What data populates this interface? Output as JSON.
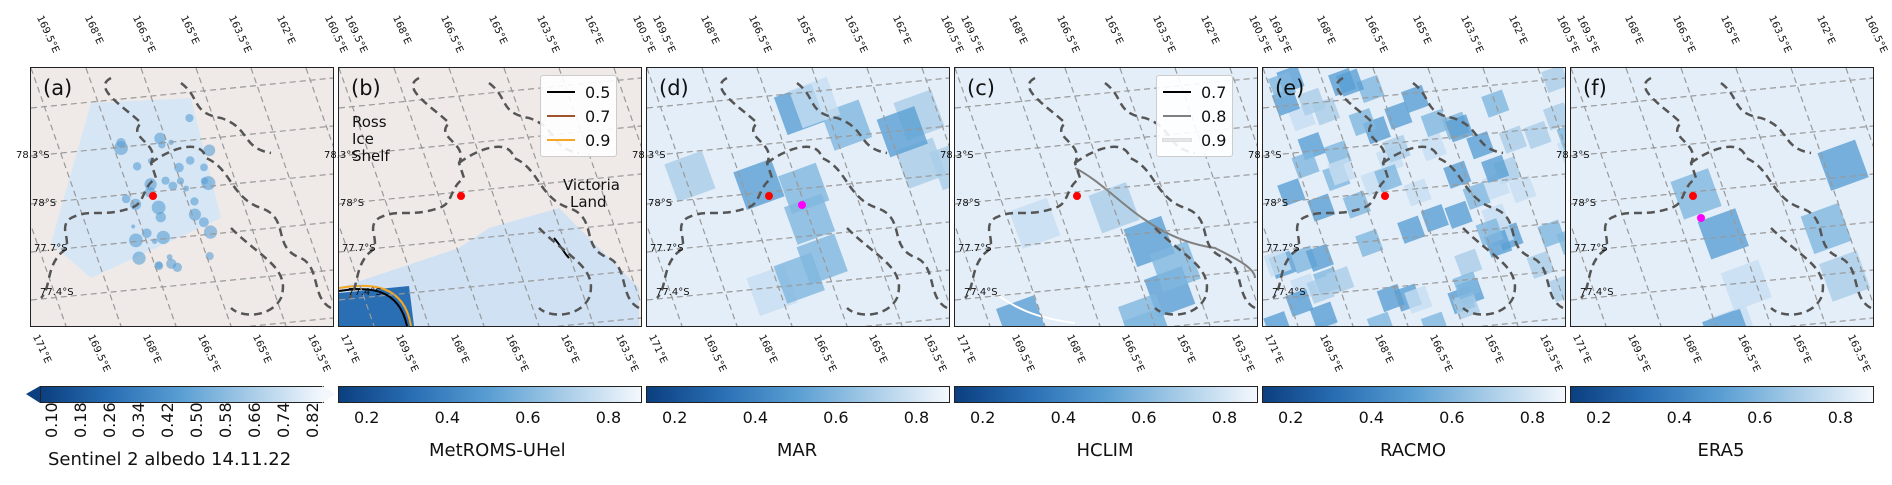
{
  "panels": [
    {
      "id": "a",
      "label": "(a)",
      "cbar_title": "Sentinel 2 albedo 14.11.22",
      "cbar_ticks": [
        "0.10",
        "0.18",
        "0.26",
        "0.34",
        "0.42",
        "0.50",
        "0.58",
        "0.66",
        "0.74",
        "0.82"
      ]
    },
    {
      "id": "b",
      "label": "(b)",
      "cbar_title": "MetROMS-UHel",
      "cbar_ticks": [
        "0.2",
        "0.4",
        "0.6",
        "0.8"
      ],
      "legend": [
        {
          "label": "0.5",
          "color": "#000000"
        },
        {
          "label": "0.7",
          "color": "#a0522d"
        },
        {
          "label": "0.9",
          "color": "#f5a623"
        }
      ],
      "annotations": [
        "Ross",
        "Ice Shelf",
        "Victoria",
        "Land"
      ]
    },
    {
      "id": "d",
      "label": "(d)",
      "cbar_title": "MAR",
      "cbar_ticks": [
        "0.2",
        "0.4",
        "0.6",
        "0.8"
      ]
    },
    {
      "id": "c",
      "label": "(c)",
      "cbar_title": "HCLIM",
      "cbar_ticks": [
        "0.2",
        "0.4",
        "0.6",
        "0.8"
      ],
      "legend": [
        {
          "label": "0.7",
          "color": "#000000"
        },
        {
          "label": "0.8",
          "color": "#808080"
        },
        {
          "label": "0.9",
          "color": "#e6e6e6"
        }
      ]
    },
    {
      "id": "e",
      "label": "(e)",
      "cbar_title": "RACMO",
      "cbar_ticks": [
        "0.2",
        "0.4",
        "0.6",
        "0.8"
      ]
    },
    {
      "id": "f",
      "label": "(f)",
      "cbar_title": "ERA5",
      "cbar_ticks": [
        "0.2",
        "0.4",
        "0.6",
        "0.8"
      ]
    }
  ],
  "top_lon_ticks": [
    "169.5°E",
    "168°E",
    "166.5°E",
    "165°E",
    "163.5°E",
    "162°E",
    "160.5°E"
  ],
  "bottom_lon_ticks": [
    "171°E",
    "169.5°E",
    "168°E",
    "166.5°E",
    "165°E",
    "163.5°E"
  ],
  "lat_ticks": [
    "78.3°S",
    "78°S",
    "77.7°S",
    "77.4°S"
  ],
  "chart_data": {
    "type": "heatmap",
    "variable": "albedo",
    "subplots": [
      "Sentinel 2 albedo 14.11.22",
      "MetROMS-UHel",
      "MAR",
      "HCLIM",
      "RACMO",
      "ERA5"
    ],
    "colorbar_range": [
      0.1,
      0.9
    ],
    "colormap": "Blues_r",
    "markers": {
      "red_point": "#ff0000",
      "magenta_point": "#ff00ff"
    },
    "contours": {
      "MetROMS-UHel": [
        0.5,
        0.7,
        0.9
      ],
      "HCLIM": [
        0.7,
        0.8,
        0.9
      ]
    }
  }
}
